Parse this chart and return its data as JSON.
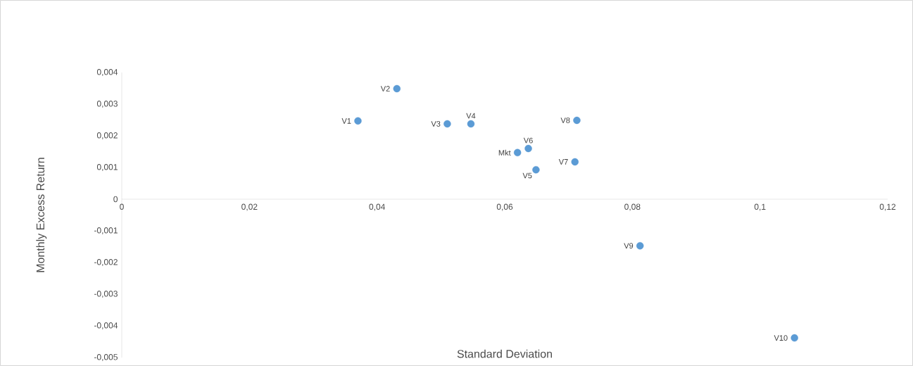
{
  "chart_data": {
    "type": "scatter",
    "xlabel": "Standard Deviation",
    "ylabel": "Monthly Excess Return",
    "x": [
      0.037,
      0.0431,
      0.051,
      0.0547,
      0.0649,
      0.0637,
      0.071,
      0.0713,
      0.0812,
      0.1054,
      0.062
    ],
    "values": [
      0.00247,
      0.00349,
      0.00238,
      0.00238,
      0.00093,
      0.0016,
      0.00118,
      0.00249,
      -0.00147,
      -0.00438,
      0.00147
    ],
    "color": "#5b9bd5",
    "marker": "circle",
    "grid": false,
    "annotations": [
      {
        "text": "V1",
        "x": 0.037,
        "y": 0.00247
      },
      {
        "text": "V2",
        "x": 0.0431,
        "y": 0.00349
      },
      {
        "text": "V3",
        "x": 0.051,
        "y": 0.00238
      },
      {
        "text": "V4",
        "x": 0.0547,
        "y": 0.00238
      },
      {
        "text": "V5",
        "x": 0.0649,
        "y": 0.00093
      },
      {
        "text": "V6",
        "x": 0.0637,
        "y": 0.0016
      },
      {
        "text": "V7",
        "x": 0.071,
        "y": 0.00118
      },
      {
        "text": "V8",
        "x": 0.0713,
        "y": 0.00249
      },
      {
        "text": "V9",
        "x": 0.0812,
        "y": -0.00147
      },
      {
        "text": "V10",
        "x": 0.1054,
        "y": -0.00438
      },
      {
        "text": "Mkt",
        "x": 0.062,
        "y": 0.00147
      }
    ],
    "xlim": [
      0,
      0.12
    ],
    "ylim": [
      -0.005,
      0.004
    ],
    "xticks": [
      0,
      {
        "value": 0.02,
        "label": "0,02"
      },
      {
        "value": 0.04,
        "label": "0,04"
      },
      {
        "value": 0.06,
        "label": "0,06"
      },
      {
        "value": 0.08,
        "label": "0,08"
      },
      {
        "value": 0.1,
        "label": "0,1"
      },
      {
        "value": 0.12,
        "label": "0,12"
      }
    ],
    "yticks": [
      {
        "value": -0.005,
        "label": "-0,005"
      },
      {
        "value": -0.004,
        "label": "-0,004"
      },
      {
        "value": -0.003,
        "label": "-0,003"
      },
      {
        "value": -0.002,
        "label": "-0,002"
      },
      {
        "value": -0.001,
        "label": "-0,001"
      },
      0,
      {
        "value": 0.001,
        "label": "0,001"
      },
      {
        "value": 0.002,
        "label": "0,002"
      },
      {
        "value": 0.003,
        "label": "0,003"
      },
      {
        "value": 0.004,
        "label": "0,004"
      }
    ]
  }
}
